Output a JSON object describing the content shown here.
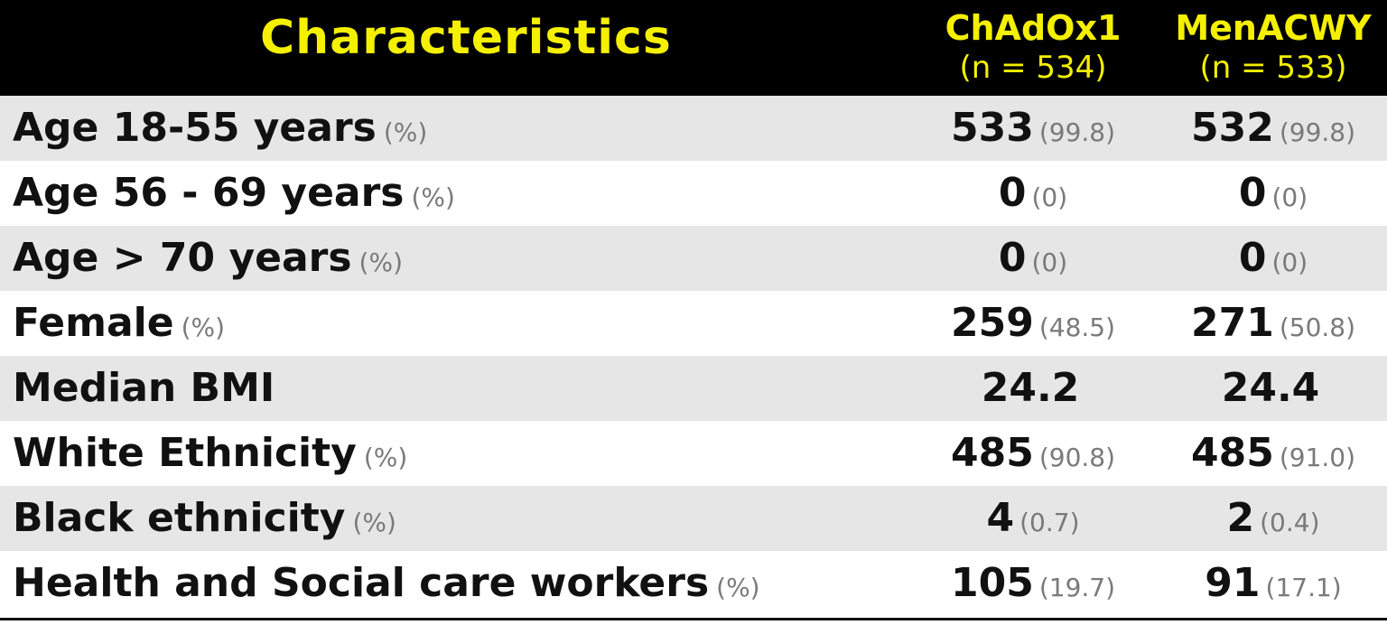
{
  "header": {
    "characteristics": "Characteristics",
    "columns": [
      {
        "name": "ChAdOx1",
        "n": "(n = 534)"
      },
      {
        "name": "MenACWY",
        "n": "(n = 533)"
      }
    ]
  },
  "rows": [
    {
      "label": "Age 18-55 years",
      "unit": "(%)",
      "c1_val": "533",
      "c1_pct": "(99.8)",
      "c2_val": "532",
      "c2_pct": "(99.8)"
    },
    {
      "label": "Age 56 - 69 years",
      "unit": "(%)",
      "c1_val": "0",
      "c1_pct": "(0)",
      "c2_val": "0",
      "c2_pct": "(0)"
    },
    {
      "label": "Age > 70 years",
      "unit": "(%)",
      "c1_val": "0",
      "c1_pct": "(0)",
      "c2_val": "0",
      "c2_pct": "(0)"
    },
    {
      "label": "Female",
      "unit": "(%)",
      "c1_val": "259",
      "c1_pct": "(48.5)",
      "c2_val": "271",
      "c2_pct": "(50.8)"
    },
    {
      "label": "Median BMI",
      "unit": "",
      "c1_val": "24.2",
      "c1_pct": "",
      "c2_val": "24.4",
      "c2_pct": ""
    },
    {
      "label": "White Ethnicity",
      "unit": "(%)",
      "c1_val": "485",
      "c1_pct": "(90.8)",
      "c2_val": "485",
      "c2_pct": "(91.0)"
    },
    {
      "label": "Black ethnicity",
      "unit": "(%)",
      "c1_val": "4",
      "c1_pct": "(0.7)",
      "c2_val": "2",
      "c2_pct": "(0.4)"
    },
    {
      "label": "Health and Social care workers",
      "unit": "(%)",
      "c1_val": "105",
      "c1_pct": "(19.7)",
      "c2_val": "91",
      "c2_pct": "(17.1)"
    }
  ],
  "colors": {
    "header_bg": "#000000",
    "header_text": "#f4f000",
    "shade_row": "#e6e6e6",
    "muted_text": "#7a7a7a"
  }
}
